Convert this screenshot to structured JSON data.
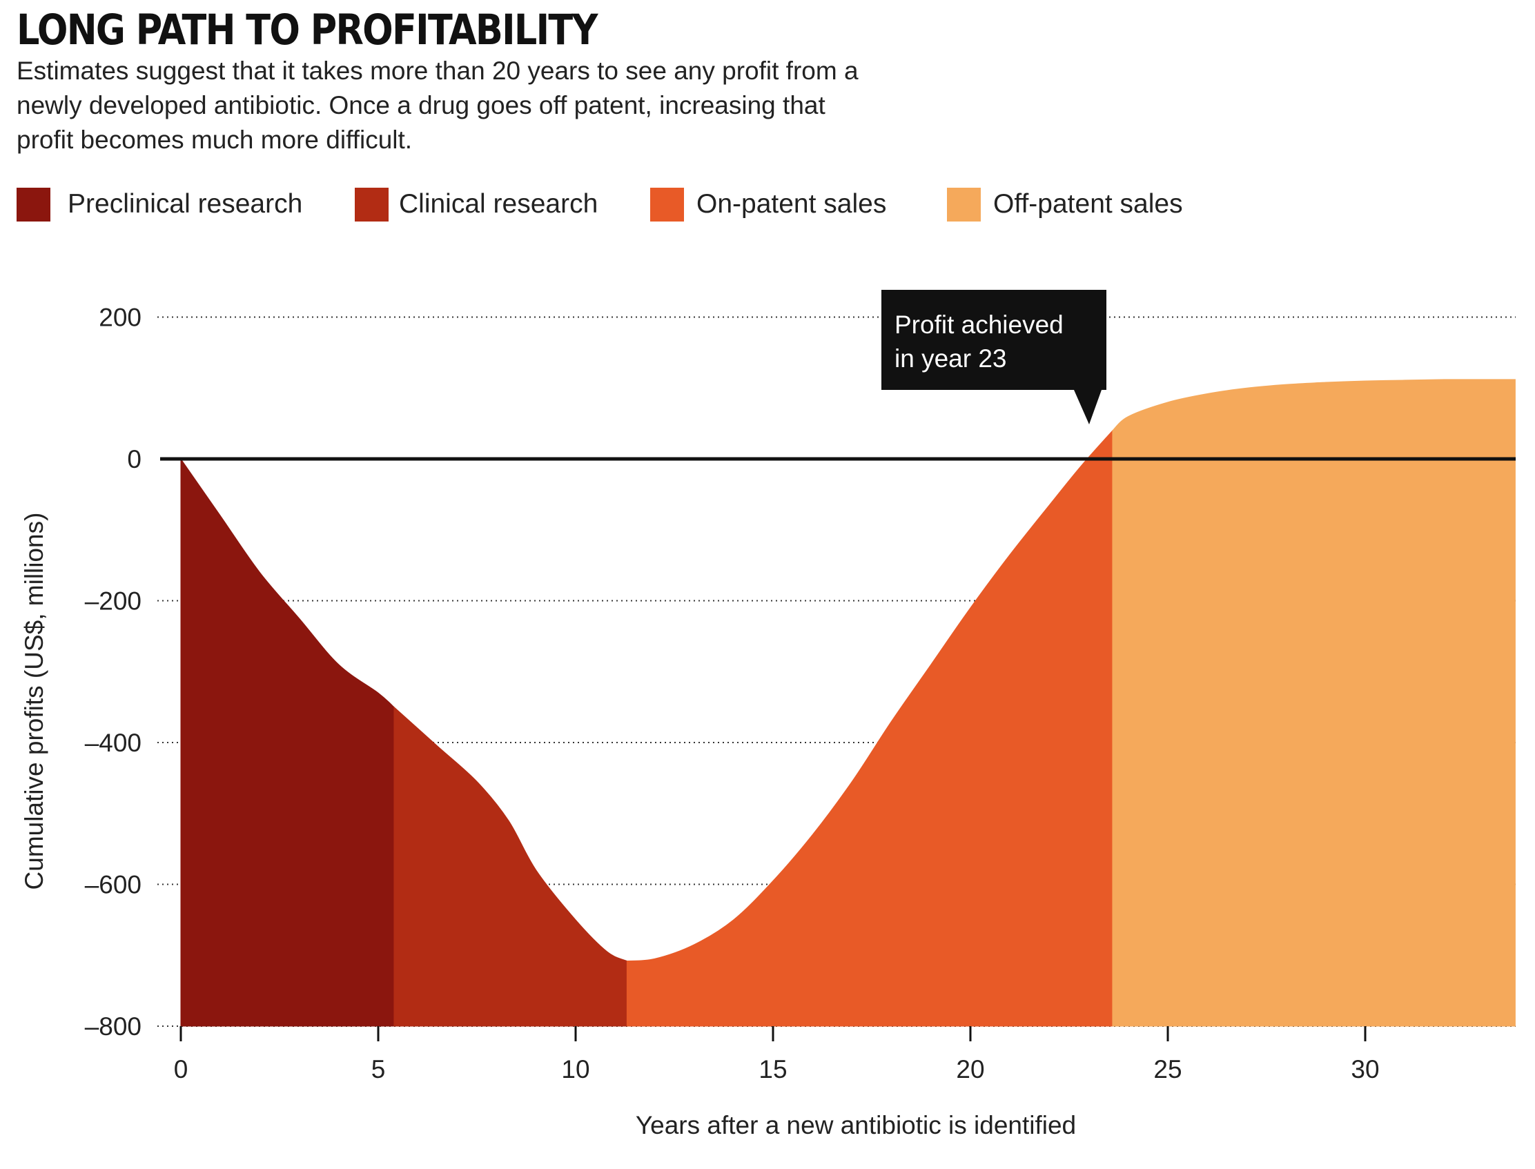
{
  "title": "LONG PATH TO PROFITABILITY",
  "subtitle": "Estimates suggest that it takes more than 20 years to see any profit from a newly developed antibiotic. Once a drug goes off patent, increasing that profit becomes much more difficult.",
  "legend": [
    {
      "label": "Preclinical research",
      "color": "#8b160e"
    },
    {
      "label": "Clinical research",
      "color": "#b22c14"
    },
    {
      "label": "On-patent sales",
      "color": "#e85a27"
    },
    {
      "label": "Off-patent sales",
      "color": "#f5a95b"
    }
  ],
  "callout": {
    "line1": "Profit achieved",
    "line2": "in year 23"
  },
  "chart_data": {
    "type": "area",
    "xlabel": "Years after a new antibiotic is identified",
    "ylabel": "Cumulative profits (US$, millions)",
    "xlim": [
      0,
      33.8
    ],
    "ylim": [
      -800,
      200
    ],
    "xticks": [
      0,
      5,
      10,
      15,
      20,
      25,
      30
    ],
    "yticks": [
      200,
      0,
      -200,
      -400,
      -600,
      -800
    ],
    "ytick_labels": [
      "200",
      "0",
      "–200",
      "–400",
      "–600",
      "–800"
    ],
    "grid": "horizontal dotted",
    "baseline": -800,
    "series": [
      {
        "name": "Preclinical research",
        "color": "#8b160e",
        "x": [
          0,
          1,
          2,
          3,
          4,
          5,
          5.4
        ],
        "y": [
          0,
          -80,
          -160,
          -225,
          -290,
          -330,
          -350
        ]
      },
      {
        "name": "Clinical research",
        "color": "#b22c14",
        "x": [
          5.4,
          6.5,
          7.5,
          8.3,
          9,
          10,
          10.8,
          11.3
        ],
        "y": [
          -350,
          -405,
          -455,
          -510,
          -580,
          -650,
          -695,
          -708
        ]
      },
      {
        "name": "On-patent sales",
        "color": "#e85a27",
        "x": [
          11.3,
          12,
          13,
          14,
          15,
          16,
          17,
          18,
          19,
          20,
          21,
          22,
          22.8,
          23.6
        ],
        "y": [
          -708,
          -705,
          -685,
          -650,
          -595,
          -530,
          -455,
          -370,
          -290,
          -210,
          -135,
          -65,
          -10,
          40
        ]
      },
      {
        "name": "Off-patent sales",
        "color": "#f5a95b",
        "x": [
          23.6,
          24,
          25,
          26,
          27,
          28,
          29,
          30,
          31,
          32,
          33,
          33.8
        ],
        "y": [
          40,
          60,
          80,
          92,
          100,
          105,
          108,
          110,
          111,
          112,
          112,
          112
        ]
      }
    ]
  }
}
